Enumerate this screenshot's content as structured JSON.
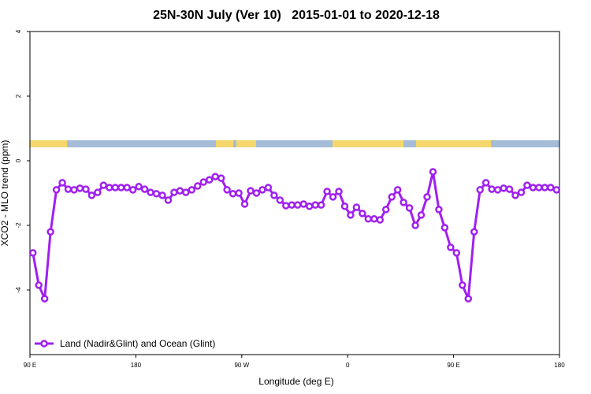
{
  "chart_data": {
    "type": "line",
    "title": "25N-30N July (Ver 10)   2015-01-01 to 2020-12-18",
    "xlabel": "Longitude (deg E)",
    "ylabel": "XCO2 - MLO trend (ppm)",
    "x": [
      92.5,
      97.5,
      102.5,
      107.5,
      112.5,
      117.5,
      122.5,
      127.5,
      132.5,
      137.5,
      142.5,
      147.5,
      152.5,
      157.5,
      162.5,
      167.5,
      172.5,
      177.5,
      182.5,
      187.5,
      192.5,
      197.5,
      202.5,
      207.5,
      212.5,
      217.5,
      222.5,
      227.5,
      232.5,
      237.5,
      242.5,
      247.5,
      252.5,
      257.5,
      262.5,
      267.5,
      272.5,
      277.5,
      282.5,
      287.5,
      292.5,
      297.5,
      302.5,
      307.5,
      312.5,
      317.5,
      322.5,
      327.5,
      332.5,
      337.5,
      342.5,
      347.5,
      352.5,
      357.5,
      362.5,
      367.5,
      372.5,
      377.5,
      382.5,
      387.5,
      392.5,
      397.5,
      402.5,
      407.5,
      412.5,
      417.5,
      422.5,
      427.5,
      432.5,
      437.5,
      442.5,
      447.5,
      452.5,
      457.5,
      462.5,
      467.5,
      472.5,
      477.5,
      482.5,
      487.5,
      492.5,
      497.5,
      502.5,
      507.5,
      512.5,
      517.5,
      522.5,
      527.5,
      532.5,
      537.5
    ],
    "series": [
      {
        "name": "Land (Nadir&Glint) and Ocean (Glint)",
        "color": "#a020f0",
        "values": [
          -2.85,
          -3.85,
          -4.27,
          -2.2,
          -0.9,
          -0.68,
          -0.88,
          -0.9,
          -0.85,
          -0.88,
          -1.07,
          -0.98,
          -0.76,
          -0.83,
          -0.83,
          -0.83,
          -0.83,
          -0.9,
          -0.8,
          -0.88,
          -0.98,
          -1.02,
          -1.07,
          -1.22,
          -0.98,
          -0.93,
          -0.98,
          -0.9,
          -0.78,
          -0.66,
          -0.59,
          -0.49,
          -0.54,
          -0.9,
          -1.02,
          -1.0,
          -1.34,
          -0.93,
          -1.0,
          -0.9,
          -0.83,
          -1.07,
          -1.22,
          -1.39,
          -1.37,
          -1.37,
          -1.34,
          -1.41,
          -1.37,
          -1.37,
          -0.95,
          -1.12,
          -0.95,
          -1.41,
          -1.68,
          -1.44,
          -1.63,
          -1.8,
          -1.8,
          -1.83,
          -1.51,
          -1.12,
          -0.9,
          -1.29,
          -1.46,
          -2.0,
          -1.68,
          -1.12,
          -0.34,
          -1.51,
          -2.07,
          -2.68,
          -2.85,
          -3.85,
          -4.27,
          -2.2,
          -0.9,
          -0.68,
          -0.88,
          -0.9,
          -0.85,
          -0.88,
          -1.07,
          -0.98,
          -0.76,
          -0.83,
          -0.83,
          -0.83,
          -0.83,
          -0.9
        ]
      }
    ],
    "xlim": [
      90,
      540
    ],
    "xticks": [
      {
        "value": 90,
        "label": "90 E"
      },
      180,
      {
        "value": 270,
        "label": "90 W"
      },
      {
        "value": 360,
        "label": "0"
      },
      {
        "value": 450,
        "label": "90 E"
      },
      {
        "value": 540,
        "label": "180"
      }
    ],
    "ylim": [
      -6,
      4
    ],
    "yticks": [
      -4,
      -2,
      0,
      2,
      4
    ],
    "grid": false,
    "legend": "bottom-left"
  }
}
